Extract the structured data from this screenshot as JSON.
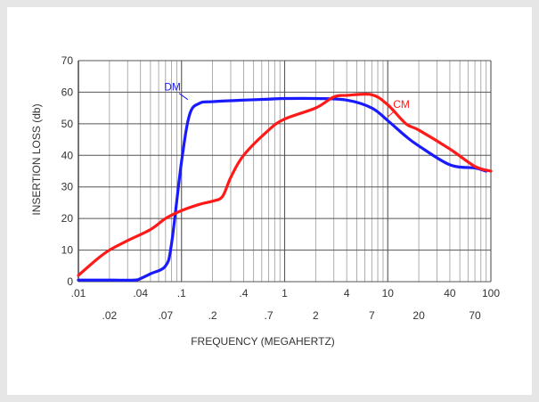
{
  "chart_data": {
    "type": "line",
    "title": "",
    "xlabel": "FREQUENCY (MEGAHERTZ)",
    "ylabel": "INSERTION LOSS (db)",
    "x_scale": "log",
    "xlim": [
      0.01,
      100
    ],
    "ylim": [
      0,
      70
    ],
    "grid": true,
    "y_ticks": [
      "0",
      "10",
      "20",
      "30",
      "40",
      "50",
      "60",
      "70"
    ],
    "x_ticks_upper": [
      {
        "v": 0.01,
        "label": ".01"
      },
      {
        "v": 0.04,
        "label": ".04"
      },
      {
        "v": 0.1,
        "label": ".1"
      },
      {
        "v": 0.4,
        "label": ".4"
      },
      {
        "v": 1,
        "label": "1"
      },
      {
        "v": 4,
        "label": "4"
      },
      {
        "v": 10,
        "label": "10"
      },
      {
        "v": 40,
        "label": "40"
      },
      {
        "v": 100,
        "label": "100"
      }
    ],
    "x_ticks_lower": [
      {
        "v": 0.02,
        "label": ".02"
      },
      {
        "v": 0.07,
        "label": ".07"
      },
      {
        "v": 0.2,
        "label": ".2"
      },
      {
        "v": 0.7,
        "label": ".7"
      },
      {
        "v": 2,
        "label": "2"
      },
      {
        "v": 7,
        "label": "7"
      },
      {
        "v": 20,
        "label": "20"
      },
      {
        "v": 70,
        "label": "70"
      }
    ],
    "series": [
      {
        "name": "DM",
        "color": "#1a1aff",
        "points": [
          [
            0.01,
            0.5
          ],
          [
            0.02,
            0.5
          ],
          [
            0.035,
            0.5
          ],
          [
            0.04,
            1
          ],
          [
            0.05,
            2.5
          ],
          [
            0.07,
            5
          ],
          [
            0.08,
            12
          ],
          [
            0.1,
            38
          ],
          [
            0.12,
            53
          ],
          [
            0.15,
            56.5
          ],
          [
            0.2,
            57
          ],
          [
            0.4,
            57.5
          ],
          [
            0.7,
            57.8
          ],
          [
            1,
            58
          ],
          [
            2,
            58
          ],
          [
            4,
            57.5
          ],
          [
            7,
            55
          ],
          [
            10,
            51
          ],
          [
            15,
            46
          ],
          [
            20,
            43
          ],
          [
            40,
            37
          ],
          [
            70,
            36
          ],
          [
            90,
            35
          ]
        ]
      },
      {
        "name": "CM",
        "color": "#ff1a1a",
        "points": [
          [
            0.01,
            2
          ],
          [
            0.015,
            7
          ],
          [
            0.02,
            10
          ],
          [
            0.03,
            13
          ],
          [
            0.05,
            16.5
          ],
          [
            0.07,
            20
          ],
          [
            0.1,
            22.5
          ],
          [
            0.15,
            24.5
          ],
          [
            0.2,
            25.5
          ],
          [
            0.25,
            27
          ],
          [
            0.3,
            33
          ],
          [
            0.4,
            40
          ],
          [
            0.7,
            48
          ],
          [
            1,
            51.5
          ],
          [
            2,
            55
          ],
          [
            3,
            58.5
          ],
          [
            4,
            59
          ],
          [
            7,
            59.2
          ],
          [
            10,
            56
          ],
          [
            15,
            50
          ],
          [
            20,
            48
          ],
          [
            40,
            42
          ],
          [
            70,
            36.5
          ],
          [
            100,
            35
          ]
        ]
      }
    ]
  }
}
